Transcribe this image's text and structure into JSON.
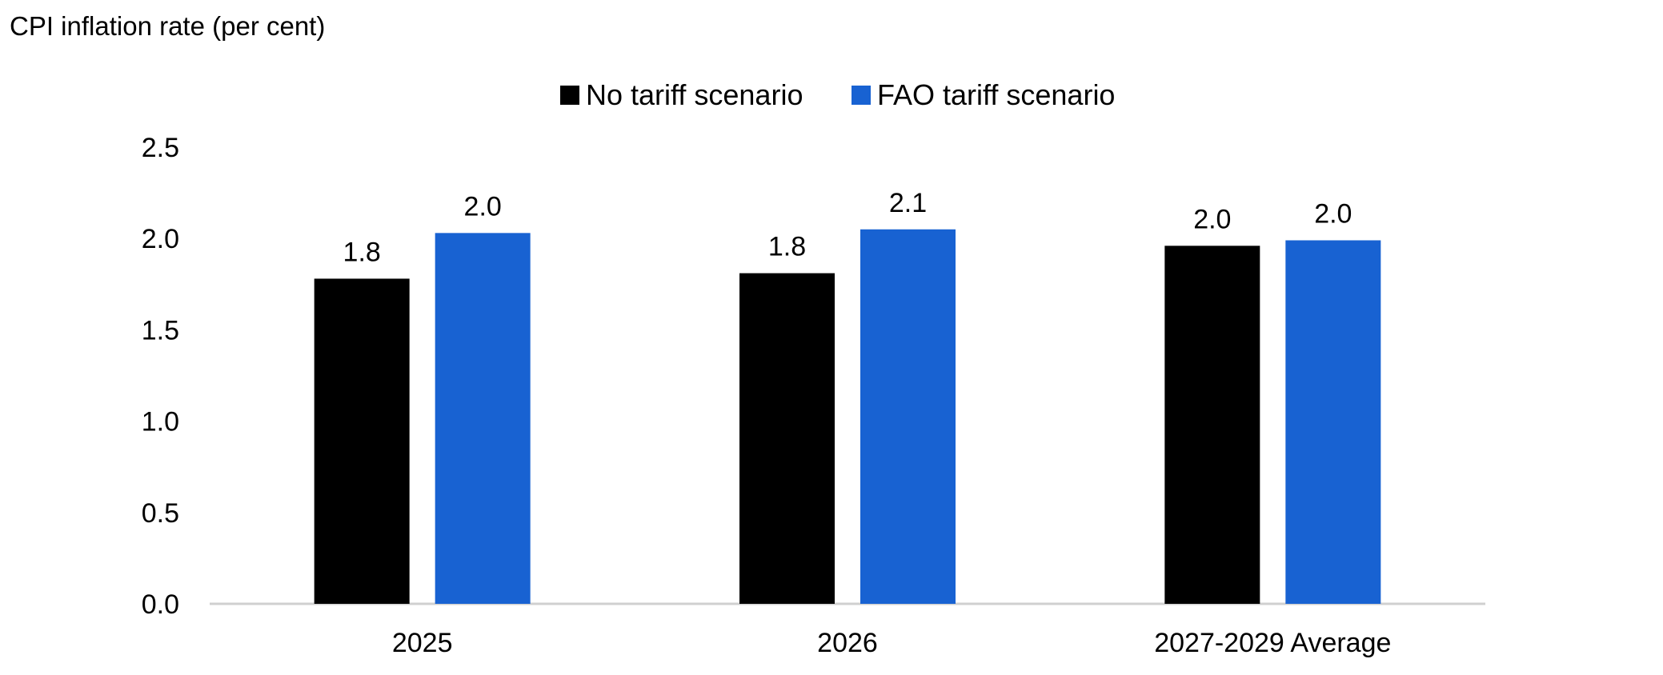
{
  "chart_data": {
    "type": "bar",
    "title": "CPI inflation rate (per cent)",
    "categories": [
      "2025",
      "2026",
      "2027-2029 Average"
    ],
    "series": [
      {
        "name": "No tariff scenario",
        "color": "#000000",
        "values": [
          1.78,
          1.81,
          1.96
        ],
        "labels": [
          "1.8",
          "1.8",
          "2.0"
        ]
      },
      {
        "name": "FAO tariff scenario",
        "color": "#1862d2",
        "values": [
          2.03,
          2.05,
          1.99
        ],
        "labels": [
          "2.0",
          "2.1",
          "2.0"
        ]
      }
    ],
    "ylim": [
      0,
      2.5
    ],
    "yticks": [
      "0.0",
      "0.5",
      "1.0",
      "1.5",
      "2.0",
      "2.5"
    ],
    "xlabel": "",
    "ylabel": "",
    "legend": "top-center",
    "grid": false
  }
}
